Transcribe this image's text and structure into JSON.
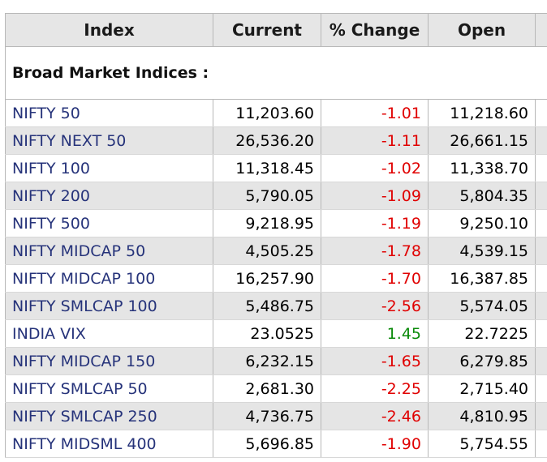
{
  "headers": {
    "index": "Index",
    "current": "Current",
    "change": "% Change",
    "open": "Open"
  },
  "section_title": "Broad Market Indices :",
  "rows": [
    {
      "name": "NIFTY 50",
      "current": "11,203.60",
      "change": "-1.01",
      "open": "11,218.60",
      "direction": "down"
    },
    {
      "name": "NIFTY NEXT 50",
      "current": "26,536.20",
      "change": "-1.11",
      "open": "26,661.15",
      "direction": "down"
    },
    {
      "name": "NIFTY 100",
      "current": "11,318.45",
      "change": "-1.02",
      "open": "11,338.70",
      "direction": "down"
    },
    {
      "name": "NIFTY 200",
      "current": "5,790.05",
      "change": "-1.09",
      "open": "5,804.35",
      "direction": "down"
    },
    {
      "name": "NIFTY 500",
      "current": "9,218.95",
      "change": "-1.19",
      "open": "9,250.10",
      "direction": "down"
    },
    {
      "name": "NIFTY MIDCAP 50",
      "current": "4,505.25",
      "change": "-1.78",
      "open": "4,539.15",
      "direction": "down"
    },
    {
      "name": "NIFTY MIDCAP 100",
      "current": "16,257.90",
      "change": "-1.70",
      "open": "16,387.85",
      "direction": "down"
    },
    {
      "name": "NIFTY SMLCAP 100",
      "current": "5,486.75",
      "change": "-2.56",
      "open": "5,574.05",
      "direction": "down"
    },
    {
      "name": "INDIA VIX",
      "current": "23.0525",
      "change": "1.45",
      "open": "22.7225",
      "direction": "up"
    },
    {
      "name": "NIFTY MIDCAP 150",
      "current": "6,232.15",
      "change": "-1.65",
      "open": "6,279.85",
      "direction": "down"
    },
    {
      "name": "NIFTY SMLCAP 50",
      "current": "2,681.30",
      "change": "-2.25",
      "open": "2,715.40",
      "direction": "down"
    },
    {
      "name": "NIFTY SMLCAP 250",
      "current": "4,736.75",
      "change": "-2.46",
      "open": "4,810.95",
      "direction": "down"
    },
    {
      "name": "NIFTY MIDSML 400",
      "current": "5,696.85",
      "change": "-1.90",
      "open": "5,754.55",
      "direction": "down"
    }
  ],
  "colors": {
    "negative": "#e00000",
    "positive": "#0a8a0a",
    "index_name": "#26337a",
    "header_bg": "#e6e6e6",
    "stripe_bg": "#e5e5e5"
  }
}
